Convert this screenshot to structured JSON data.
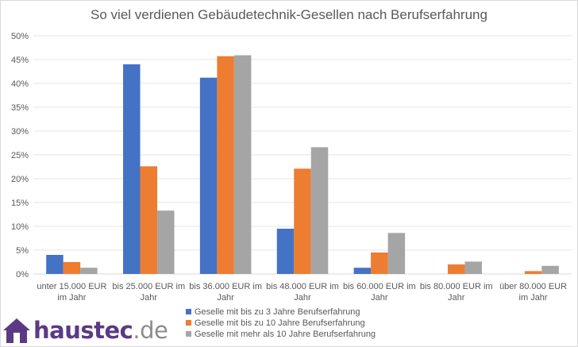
{
  "chart_data": {
    "type": "bar",
    "title": "So viel verdienen Gebäudetechnik-Gesellen nach Berufserfahrung",
    "xlabel": "",
    "ylabel": "",
    "ylim": [
      0,
      50
    ],
    "ytick_step": 5,
    "ytick_suffix": "%",
    "grid": true,
    "legend_position": "bottom",
    "categories": [
      [
        "unter 15.000 EUR",
        "im Jahr"
      ],
      [
        "bis 25.000 EUR im",
        "Jahr"
      ],
      [
        "bis 36.000 EUR im",
        "Jahr"
      ],
      [
        "bis 48.000 EUR im",
        "Jahr"
      ],
      [
        "bis 60.000 EUR im",
        "Jahr"
      ],
      [
        "bis 80.000 EUR im",
        "Jahr"
      ],
      [
        "über 80.000 EUR",
        "im Jahr"
      ]
    ],
    "series": [
      {
        "name": "Geselle mit bis zu 3 Jahre Berufserfahrung",
        "color": "#4472c4",
        "values": [
          4.0,
          44.0,
          41.2,
          9.5,
          1.3,
          0,
          0
        ]
      },
      {
        "name": "Geselle mit bis zu 10 Jahre Berufserfahrung",
        "color": "#ed7d31",
        "values": [
          2.5,
          22.6,
          45.7,
          22.1,
          4.5,
          2.0,
          0.6
        ]
      },
      {
        "name": "Geselle mit mehr als 10 Jahre Berufserfahrung",
        "color": "#a5a5a5",
        "values": [
          1.3,
          13.3,
          45.9,
          26.6,
          8.6,
          2.6,
          1.7
        ]
      }
    ]
  },
  "logo": {
    "part1": "haus",
    "part2": "tec",
    "part3": ".de",
    "icon": "house-icon",
    "color": "#5b3a85"
  }
}
